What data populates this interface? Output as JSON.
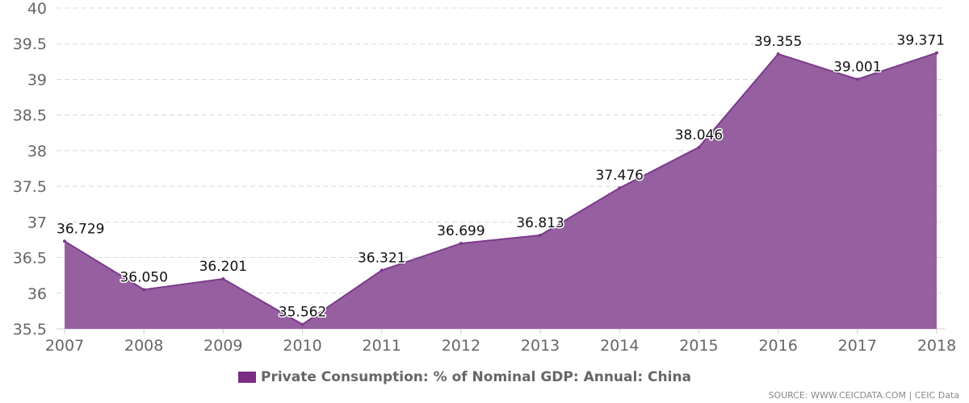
{
  "chart_data": {
    "type": "area",
    "categories": [
      "2007",
      "2008",
      "2009",
      "2010",
      "2011",
      "2012",
      "2013",
      "2014",
      "2015",
      "2016",
      "2017",
      "2018"
    ],
    "series": [
      {
        "name": "Private Consumption: % of Nominal GDP: Annual: China",
        "values": [
          36.729,
          36.05,
          36.201,
          35.562,
          36.321,
          36.699,
          36.813,
          37.476,
          38.046,
          39.355,
          39.001,
          39.371
        ],
        "labels": [
          "36.729",
          "36.050",
          "36.201",
          "35.562",
          "36.321",
          "36.699",
          "36.813",
          "37.476",
          "38.046",
          "39.355",
          "39.001",
          "39.371"
        ]
      }
    ],
    "ylim": [
      35.5,
      40
    ],
    "yticks": [
      35.5,
      36,
      36.5,
      37,
      37.5,
      38,
      38.5,
      39,
      39.5,
      40
    ],
    "ytick_labels": [
      "35.5",
      "36",
      "36.5",
      "37",
      "37.5",
      "38",
      "38.5",
      "39",
      "39.5",
      "40"
    ],
    "grid": true,
    "legend_position": "bottom-center",
    "colors": {
      "fill": "#9660a0",
      "line": "#7b3b8c",
      "legend": "#7b2d86"
    }
  },
  "source": "SOURCE: WWW.CEICDATA.COM | CEIC Data"
}
